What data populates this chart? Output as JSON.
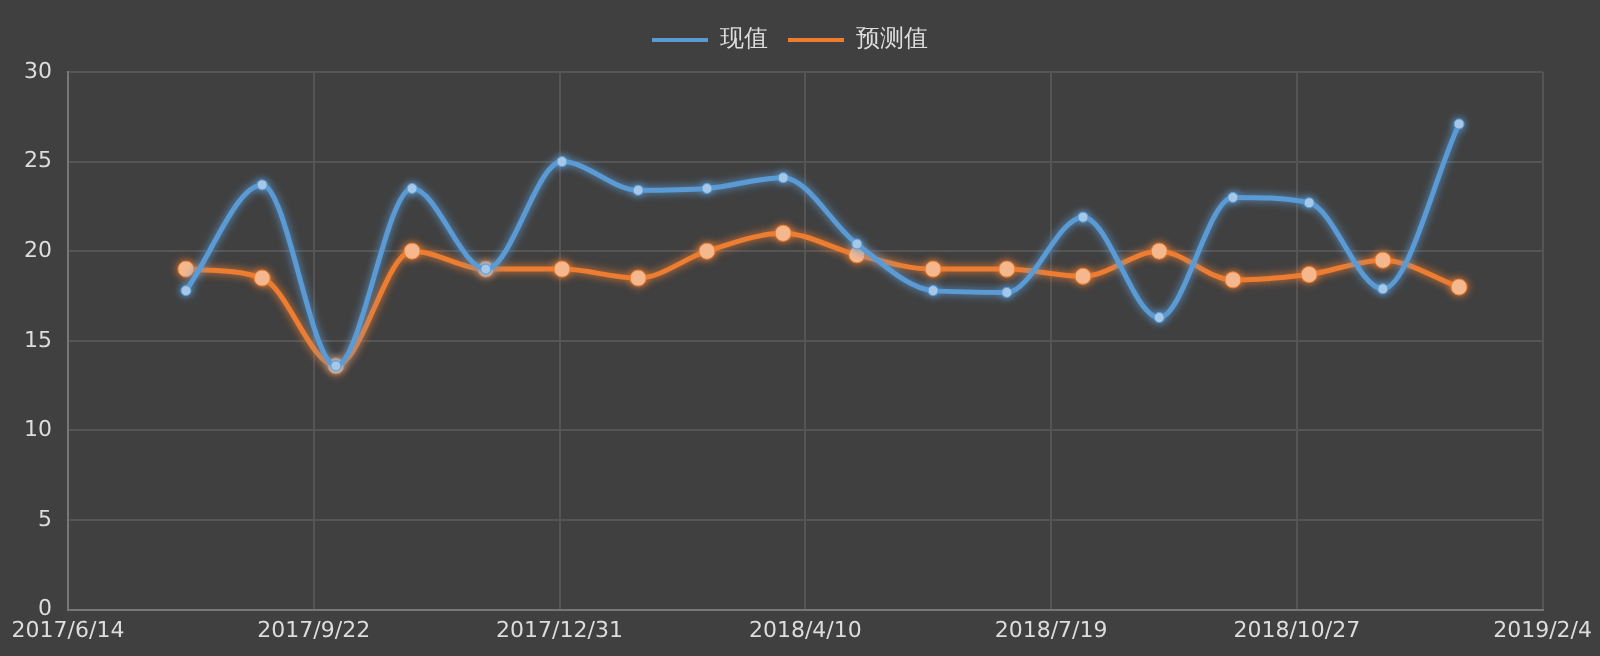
{
  "chart_data": {
    "type": "line",
    "x": [
      "2017-08-01",
      "2017-09-01",
      "2017-10-01",
      "2017-11-01",
      "2017-12-01",
      "2018-01-01",
      "2018-02-01",
      "2018-03-01",
      "2018-04-01",
      "2018-05-01",
      "2018-06-01",
      "2018-07-01",
      "2018-08-01",
      "2018-09-01",
      "2018-10-01",
      "2018-11-01",
      "2018-12-01",
      "2019-01-01"
    ],
    "series": [
      {
        "name": "现值",
        "color": "#5b9bd5",
        "values": [
          17.8,
          23.7,
          13.6,
          23.5,
          19.0,
          25.0,
          23.4,
          23.5,
          24.1,
          20.4,
          17.8,
          17.7,
          21.9,
          16.3,
          23.0,
          22.7,
          17.9,
          27.1
        ]
      },
      {
        "name": "预测值",
        "color": "#ed7d31",
        "values": [
          19.0,
          18.5,
          13.6,
          20.0,
          19.0,
          19.0,
          18.5,
          20.0,
          21.0,
          19.8,
          19.0,
          19.0,
          18.6,
          20.0,
          18.4,
          18.7,
          19.5,
          18.0
        ]
      }
    ],
    "xlim": [
      "2017-06-14",
      "2019-02-04"
    ],
    "xticks": [
      {
        "value": "2017-06-14",
        "label": "2017/6/14"
      },
      {
        "value": "2017-09-22",
        "label": "2017/9/22"
      },
      {
        "value": "2017-12-31",
        "label": "2017/12/31"
      },
      {
        "value": "2018-04-10",
        "label": "2018/4/10"
      },
      {
        "value": "2018-07-19",
        "label": "2018/7/19"
      },
      {
        "value": "2018-10-27",
        "label": "2018/10/27"
      },
      {
        "value": "2019-02-04",
        "label": "2019/2/4"
      }
    ],
    "ylim": [
      0,
      30
    ],
    "yticks": [
      0,
      5,
      10,
      15,
      20,
      25,
      30
    ],
    "grid": true,
    "legend": "top",
    "marker": "circle",
    "line_style": "solid"
  }
}
